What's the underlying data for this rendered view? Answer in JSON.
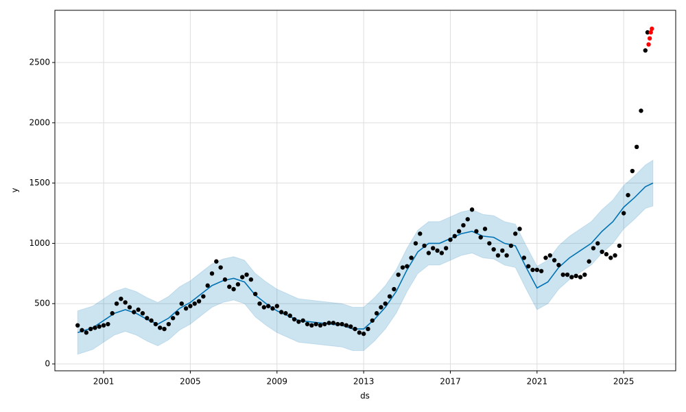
{
  "chart_data": {
    "type": "forecast",
    "x_label": "ds",
    "y_label": "y",
    "xlim": [
      1998.75,
      2027.4
    ],
    "ylim": [
      -57,
      2933
    ],
    "xticks": [
      2001,
      2005,
      2009,
      2013,
      2017,
      2021,
      2025
    ],
    "yticks": [
      0,
      500,
      1000,
      1500,
      2000,
      2500
    ],
    "grid": true,
    "band": {
      "color": "#0072b2",
      "x": [
        1999.8,
        2000.5,
        2001.0,
        2001.5,
        2002.0,
        2002.5,
        2003.0,
        2003.5,
        2004.0,
        2004.5,
        2005.0,
        2005.5,
        2006.0,
        2006.5,
        2007.0,
        2007.5,
        2008.0,
        2008.5,
        2009.0,
        2009.5,
        2010.0,
        2010.5,
        2011.0,
        2011.5,
        2012.0,
        2012.5,
        2013.0,
        2013.5,
        2014.0,
        2014.5,
        2015.0,
        2015.5,
        2016.0,
        2016.5,
        2017.0,
        2017.5,
        2018.0,
        2018.5,
        2019.0,
        2019.5,
        2020.0,
        2020.5,
        2021.0,
        2021.5,
        2022.0,
        2022.5,
        2023.0,
        2023.5,
        2024.0,
        2024.5,
        2025.0,
        2025.5,
        2026.0,
        2026.35
      ],
      "lower": [
        80,
        120,
        180,
        240,
        270,
        240,
        190,
        150,
        200,
        280,
        330,
        400,
        470,
        510,
        530,
        500,
        390,
        320,
        260,
        220,
        180,
        170,
        160,
        150,
        140,
        110,
        110,
        190,
        290,
        420,
        600,
        750,
        820,
        820,
        860,
        900,
        920,
        880,
        870,
        820,
        800,
        620,
        450,
        500,
        620,
        700,
        760,
        820,
        920,
        1000,
        1120,
        1200,
        1290,
        1310
      ],
      "upper": [
        440,
        480,
        540,
        600,
        630,
        600,
        550,
        510,
        560,
        640,
        690,
        760,
        830,
        870,
        890,
        860,
        750,
        680,
        620,
        580,
        540,
        530,
        520,
        510,
        500,
        470,
        470,
        550,
        650,
        780,
        960,
        1110,
        1180,
        1180,
        1220,
        1260,
        1280,
        1240,
        1230,
        1180,
        1160,
        980,
        810,
        860,
        980,
        1060,
        1120,
        1180,
        1280,
        1360,
        1480,
        1560,
        1650,
        1690
      ]
    },
    "series": [
      {
        "mode": "lines",
        "color": "#0072b2",
        "x": [
          1999.8,
          2000.5,
          2001.0,
          2001.5,
          2002.0,
          2002.5,
          2003.0,
          2003.5,
          2004.0,
          2004.5,
          2005.0,
          2005.5,
          2006.0,
          2006.5,
          2007.0,
          2007.5,
          2008.0,
          2008.5,
          2009.0,
          2009.5,
          2010.0,
          2010.5,
          2011.0,
          2011.5,
          2012.0,
          2012.5,
          2013.0,
          2013.5,
          2014.0,
          2014.5,
          2015.0,
          2015.5,
          2016.0,
          2016.5,
          2017.0,
          2017.5,
          2018.0,
          2018.5,
          2019.0,
          2019.5,
          2020.0,
          2020.5,
          2021.0,
          2021.5,
          2022.0,
          2022.5,
          2023.0,
          2023.5,
          2024.0,
          2024.5,
          2025.0,
          2025.5,
          2026.0,
          2026.35
        ],
        "values": [
          260,
          300,
          360,
          420,
          450,
          420,
          370,
          330,
          380,
          460,
          510,
          580,
          650,
          690,
          710,
          680,
          570,
          500,
          440,
          400,
          360,
          350,
          340,
          330,
          320,
          290,
          290,
          370,
          470,
          600,
          780,
          930,
          1000,
          1000,
          1040,
          1080,
          1100,
          1060,
          1050,
          1000,
          980,
          800,
          630,
          680,
          800,
          880,
          940,
          1000,
          1100,
          1180,
          1300,
          1380,
          1470,
          1500
        ]
      },
      {
        "mode": "markers",
        "color": "#000000",
        "x": [
          1999.8,
          2000.0,
          2000.2,
          2000.4,
          2000.6,
          2000.8,
          2001.0,
          2001.2,
          2001.4,
          2001.6,
          2001.8,
          2002.0,
          2002.2,
          2002.4,
          2002.6,
          2002.8,
          2003.0,
          2003.2,
          2003.4,
          2003.6,
          2003.8,
          2004.0,
          2004.2,
          2004.4,
          2004.6,
          2004.8,
          2005.0,
          2005.2,
          2005.4,
          2005.6,
          2005.8,
          2006.0,
          2006.2,
          2006.4,
          2006.6,
          2006.8,
          2007.0,
          2007.2,
          2007.4,
          2007.6,
          2007.8,
          2008.0,
          2008.2,
          2008.4,
          2008.6,
          2008.8,
          2009.0,
          2009.2,
          2009.4,
          2009.6,
          2009.8,
          2010.0,
          2010.2,
          2010.4,
          2010.6,
          2010.8,
          2011.0,
          2011.2,
          2011.4,
          2011.6,
          2011.8,
          2012.0,
          2012.2,
          2012.4,
          2012.6,
          2012.8,
          2013.0,
          2013.2,
          2013.4,
          2013.6,
          2013.8,
          2014.0,
          2014.2,
          2014.4,
          2014.6,
          2014.8,
          2015.0,
          2015.2,
          2015.4,
          2015.6,
          2015.8,
          2016.0,
          2016.2,
          2016.4,
          2016.6,
          2016.8,
          2017.0,
          2017.2,
          2017.4,
          2017.6,
          2017.8,
          2018.0,
          2018.2,
          2018.4,
          2018.6,
          2018.8,
          2019.0,
          2019.2,
          2019.4,
          2019.6,
          2019.8,
          2020.0,
          2020.2,
          2020.4,
          2020.6,
          2020.8,
          2021.0,
          2021.2,
          2021.4,
          2021.6,
          2021.8,
          2022.0,
          2022.2,
          2022.4,
          2022.6,
          2022.8,
          2023.0,
          2023.2,
          2023.4,
          2023.6,
          2023.8,
          2024.0,
          2024.2,
          2024.4,
          2024.6,
          2024.8,
          2025.0,
          2025.2,
          2025.4,
          2025.6,
          2025.8,
          2026.0,
          2026.1
        ],
        "values": [
          320,
          280,
          260,
          290,
          300,
          310,
          320,
          330,
          420,
          500,
          540,
          510,
          470,
          430,
          450,
          420,
          380,
          360,
          330,
          300,
          290,
          330,
          380,
          420,
          500,
          460,
          480,
          500,
          520,
          560,
          650,
          750,
          850,
          800,
          700,
          640,
          620,
          660,
          720,
          740,
          700,
          580,
          500,
          470,
          480,
          460,
          480,
          430,
          420,
          400,
          370,
          350,
          360,
          330,
          320,
          330,
          320,
          330,
          340,
          340,
          330,
          330,
          320,
          310,
          290,
          260,
          250,
          290,
          360,
          420,
          470,
          500,
          560,
          620,
          740,
          800,
          810,
          880,
          1000,
          1080,
          980,
          920,
          960,
          940,
          920,
          960,
          1030,
          1060,
          1100,
          1150,
          1200,
          1280,
          1100,
          1050,
          1120,
          1000,
          950,
          900,
          940,
          900,
          980,
          1080,
          1120,
          880,
          810,
          780,
          780,
          770,
          880,
          900,
          860,
          820,
          740,
          740,
          720,
          730,
          720,
          740,
          850,
          960,
          1000,
          930,
          910,
          880,
          900,
          980,
          1250,
          1400,
          1600,
          1800,
          2100,
          2600,
          2750
        ]
      },
      {
        "mode": "markers",
        "color": "#ff0000",
        "x": [
          2026.15,
          2026.2,
          2026.25,
          2026.3
        ],
        "values": [
          2650,
          2700,
          2750,
          2780
        ]
      }
    ]
  }
}
